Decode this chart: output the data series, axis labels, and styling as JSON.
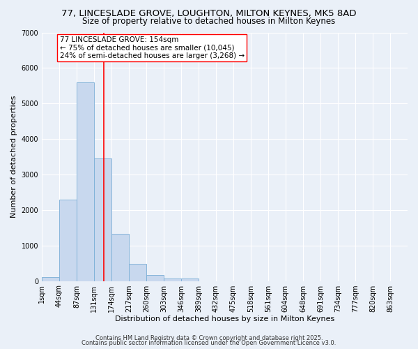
{
  "title": "77, LINCESLADE GROVE, LOUGHTON, MILTON KEYNES, MK5 8AD",
  "subtitle": "Size of property relative to detached houses in Milton Keynes",
  "xlabel": "Distribution of detached houses by size in Milton Keynes",
  "ylabel": "Number of detached properties",
  "bin_labels": [
    "1sqm",
    "44sqm",
    "87sqm",
    "131sqm",
    "174sqm",
    "217sqm",
    "260sqm",
    "303sqm",
    "346sqm",
    "389sqm",
    "432sqm",
    "475sqm",
    "518sqm",
    "561sqm",
    "604sqm",
    "648sqm",
    "691sqm",
    "734sqm",
    "777sqm",
    "820sqm",
    "863sqm"
  ],
  "bin_starts": [
    1,
    44,
    87,
    131,
    174,
    217,
    260,
    303,
    346,
    389,
    432,
    475,
    518,
    561,
    604,
    648,
    691,
    734,
    777,
    820,
    863
  ],
  "bar_heights": [
    100,
    2300,
    5600,
    3450,
    1320,
    480,
    160,
    80,
    80,
    0,
    0,
    0,
    0,
    0,
    0,
    0,
    0,
    0,
    0,
    0,
    0
  ],
  "bar_color": "#c8d8ee",
  "bar_edge_color": "#7aaed6",
  "red_line_x": 154,
  "ylim": [
    0,
    7000
  ],
  "annotation_title": "77 LINCESLADE GROVE: 154sqm",
  "annotation_line1": "← 75% of detached houses are smaller (10,045)",
  "annotation_line2": "24% of semi-detached houses are larger (3,268) →",
  "footer1": "Contains HM Land Registry data © Crown copyright and database right 2025.",
  "footer2": "Contains public sector information licensed under the Open Government Licence v3.0.",
  "bg_color": "#eaf0f8",
  "grid_color": "#ffffff",
  "title_fontsize": 9.5,
  "subtitle_fontsize": 8.5,
  "axis_label_fontsize": 8,
  "tick_fontsize": 7,
  "annotation_fontsize": 7.5,
  "footer_fontsize": 6
}
